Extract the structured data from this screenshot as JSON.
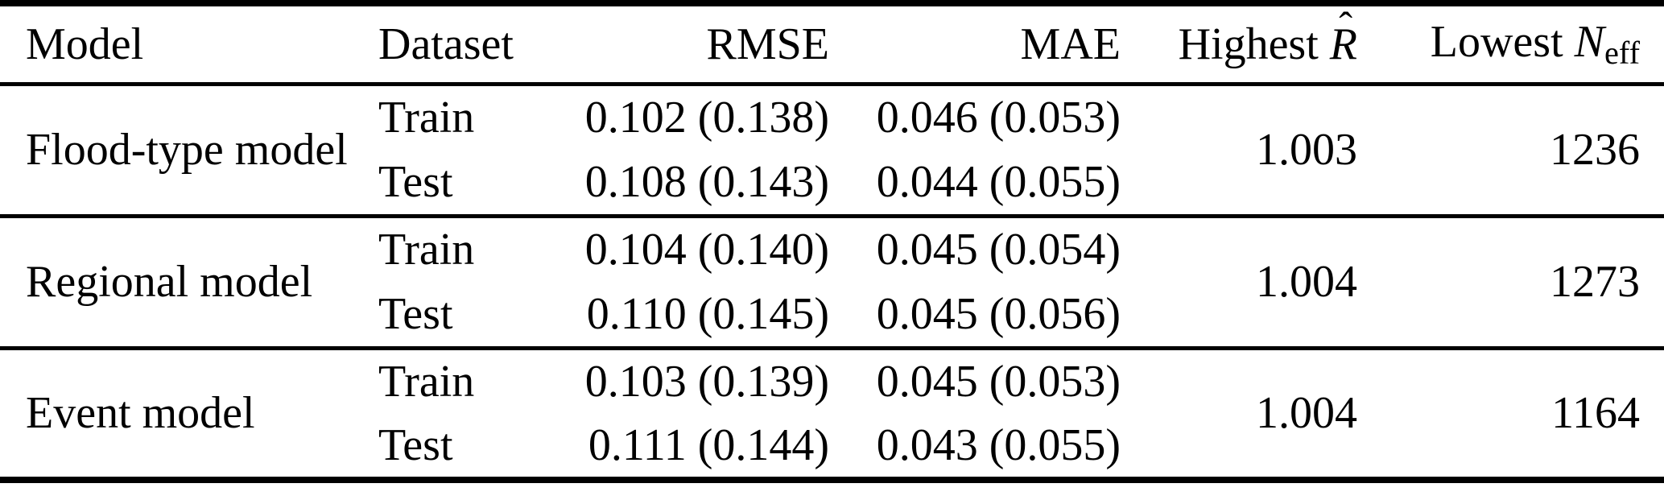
{
  "colors": {
    "text": "#000000",
    "background": "#ffffff",
    "rule": "#000000"
  },
  "table": {
    "header": {
      "model": "Model",
      "dataset": "Dataset",
      "rmse": "RMSE",
      "mae": "MAE",
      "highest_rhat_prefix": "Highest ",
      "highest_rhat_symbol": "R",
      "highest_rhat_hat": "ˆ",
      "lowest_neff_prefix": "Lowest ",
      "lowest_neff_symbol": "N",
      "lowest_neff_subscript": "eff"
    },
    "rows": [
      {
        "model": "Flood-type model",
        "lines": [
          {
            "dataset": "Train",
            "rmse": "0.102 (0.138)",
            "mae": "0.046 (0.053)"
          },
          {
            "dataset": "Test",
            "rmse": "0.108 (0.143)",
            "mae": "0.044 (0.055)"
          }
        ],
        "highest_rhat": "1.003",
        "lowest_neff": "1236"
      },
      {
        "model": "Regional model",
        "lines": [
          {
            "dataset": "Train",
            "rmse": "0.104 (0.140)",
            "mae": "0.045 (0.054)"
          },
          {
            "dataset": "Test",
            "rmse": "0.110 (0.145)",
            "mae": "0.045 (0.056)"
          }
        ],
        "highest_rhat": "1.004",
        "lowest_neff": "1273"
      },
      {
        "model": "Event model",
        "lines": [
          {
            "dataset": "Train",
            "rmse": "0.103 (0.139)",
            "mae": "0.045 (0.053)"
          },
          {
            "dataset": "Test",
            "rmse": "0.111 (0.144)",
            "mae": "0.043 (0.055)"
          }
        ],
        "highest_rhat": "1.004",
        "lowest_neff": "1164"
      }
    ]
  }
}
